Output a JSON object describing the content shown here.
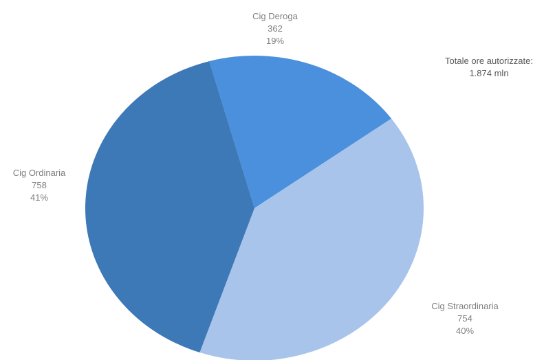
{
  "chart_data": {
    "type": "pie",
    "title": "",
    "categories": [
      "Cig Deroga",
      "Cig Straordinaria",
      "Cig Ordinaria"
    ],
    "values": [
      362,
      754,
      758
    ],
    "percent_labels": [
      "19%",
      "40%",
      "41%"
    ],
    "colors": [
      "#4a90dc",
      "#a9c4ea",
      "#3d78b7"
    ],
    "annotation": {
      "line1": "Totale ore autorizzate:",
      "line2": "1.874 mln"
    }
  },
  "labels": {
    "deroga": {
      "name": "Cig Deroga",
      "value": "362",
      "percent": "19%"
    },
    "ordinaria": {
      "name": "Cig Ordinaria",
      "value": "758",
      "percent": "41%"
    },
    "straordinaria": {
      "name": "Cig Straordinaria",
      "value": "754",
      "percent": "40%"
    }
  }
}
